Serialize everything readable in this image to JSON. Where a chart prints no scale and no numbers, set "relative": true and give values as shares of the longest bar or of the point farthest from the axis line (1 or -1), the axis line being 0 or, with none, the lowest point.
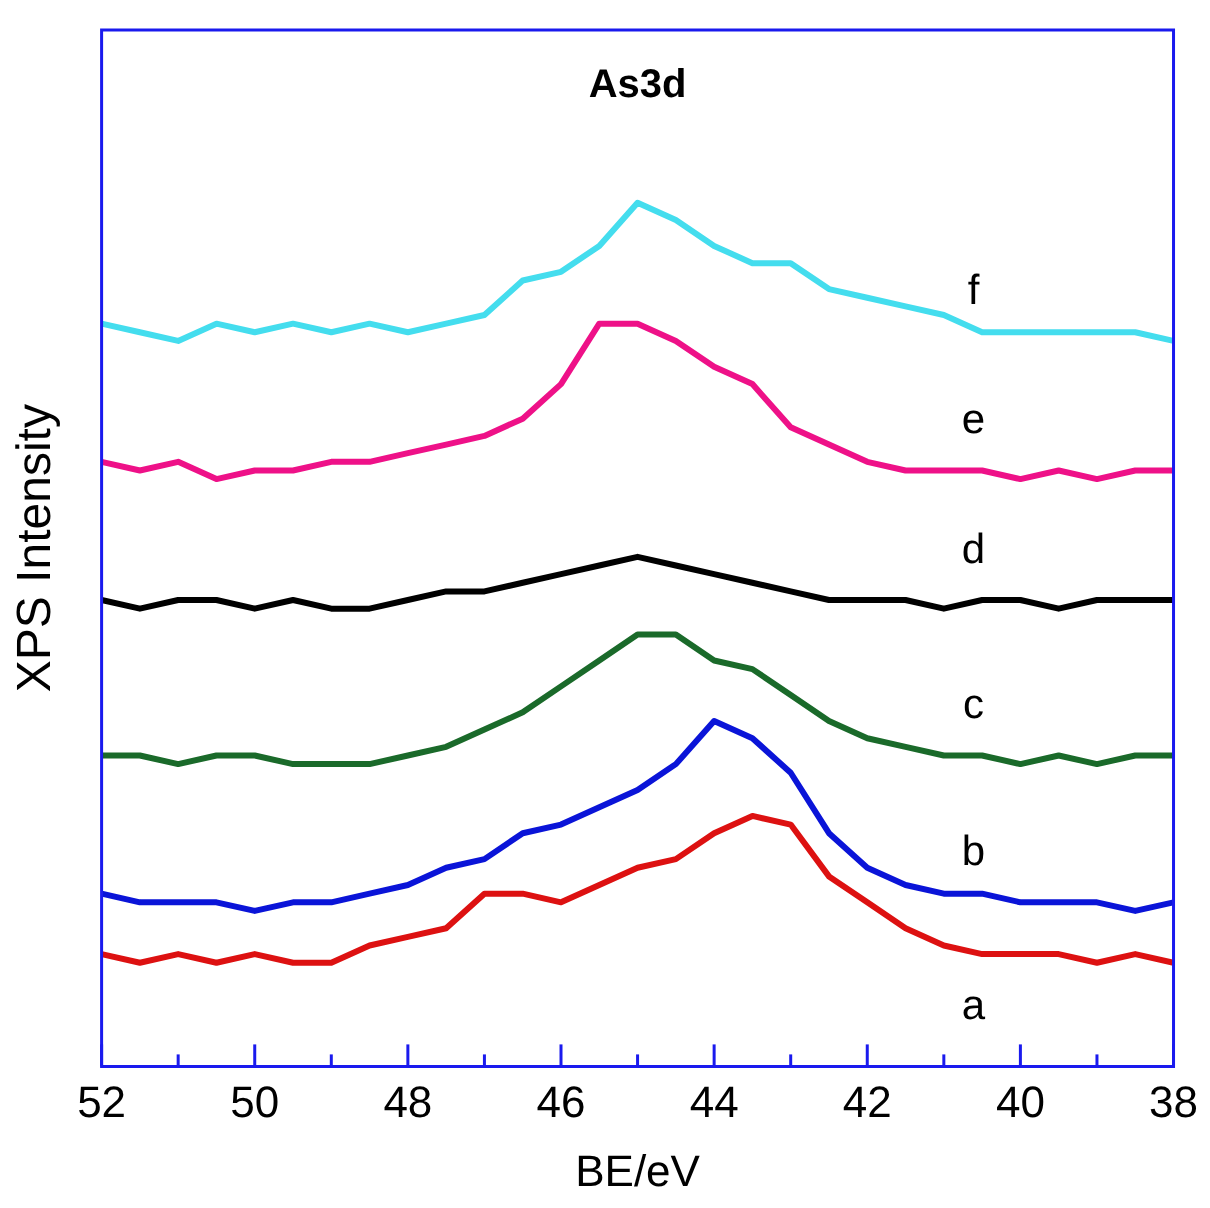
{
  "chart_data": {
    "type": "line",
    "title": "As3d",
    "xlabel": "BE/eV",
    "ylabel": "XPS Intensity",
    "relative": true,
    "x": [
      52,
      51.5,
      51,
      50.5,
      50,
      49.5,
      49,
      48.5,
      48,
      47.5,
      47,
      46.5,
      46,
      45.5,
      45,
      44.5,
      44,
      43.5,
      43,
      42.5,
      42,
      41.5,
      41,
      40.5,
      40,
      39.5,
      39,
      38.5,
      38
    ],
    "xlim": [
      52,
      38
    ],
    "xticks": [
      52,
      {
        "value": 51,
        "label": null
      },
      50,
      {
        "value": 49,
        "label": null
      },
      48,
      {
        "value": 47,
        "label": null
      },
      46,
      {
        "value": 45,
        "label": null
      },
      44,
      {
        "value": 43,
        "label": null
      },
      42,
      {
        "value": 41,
        "label": null
      },
      40,
      {
        "value": 39,
        "label": null
      },
      38
    ],
    "grid": false,
    "legend": false,
    "marker": "none",
    "line_style": "solid",
    "series": [
      {
        "name": "a",
        "color": "#dd1111",
        "values": [
          0.13,
          0.12,
          0.13,
          0.12,
          0.13,
          0.12,
          0.12,
          0.14,
          0.15,
          0.16,
          0.2,
          0.2,
          0.19,
          0.21,
          0.23,
          0.24,
          0.27,
          0.29,
          0.28,
          0.22,
          0.19,
          0.16,
          0.14,
          0.13,
          0.13,
          0.13,
          0.12,
          0.13,
          0.12
        ]
      },
      {
        "name": "b",
        "color": "#0a14d8",
        "values": [
          0.2,
          0.19,
          0.19,
          0.19,
          0.18,
          0.19,
          0.19,
          0.2,
          0.21,
          0.23,
          0.24,
          0.27,
          0.28,
          0.3,
          0.32,
          0.35,
          0.4,
          0.38,
          0.34,
          0.27,
          0.23,
          0.21,
          0.2,
          0.2,
          0.19,
          0.19,
          0.19,
          0.18,
          0.19
        ]
      },
      {
        "name": "c",
        "color": "#1a6a2a",
        "values": [
          0.36,
          0.36,
          0.35,
          0.36,
          0.36,
          0.35,
          0.35,
          0.35,
          0.36,
          0.37,
          0.39,
          0.41,
          0.44,
          0.47,
          0.5,
          0.5,
          0.47,
          0.46,
          0.43,
          0.4,
          0.38,
          0.37,
          0.36,
          0.36,
          0.35,
          0.36,
          0.35,
          0.36,
          0.36
        ]
      },
      {
        "name": "d",
        "color": "#000000",
        "values": [
          0.54,
          0.53,
          0.54,
          0.54,
          0.53,
          0.54,
          0.53,
          0.53,
          0.54,
          0.55,
          0.55,
          0.56,
          0.57,
          0.58,
          0.59,
          0.58,
          0.57,
          0.56,
          0.55,
          0.54,
          0.54,
          0.54,
          0.53,
          0.54,
          0.54,
          0.53,
          0.54,
          0.54,
          0.54
        ]
      },
      {
        "name": "e",
        "color": "#ee1188",
        "values": [
          0.7,
          0.69,
          0.7,
          0.68,
          0.69,
          0.69,
          0.7,
          0.7,
          0.71,
          0.72,
          0.73,
          0.75,
          0.79,
          0.86,
          0.86,
          0.84,
          0.81,
          0.79,
          0.74,
          0.72,
          0.7,
          0.69,
          0.69,
          0.69,
          0.68,
          0.69,
          0.68,
          0.69,
          0.69
        ]
      },
      {
        "name": "f",
        "color": "#44ddee",
        "values": [
          0.86,
          0.85,
          0.84,
          0.86,
          0.85,
          0.86,
          0.85,
          0.86,
          0.85,
          0.86,
          0.87,
          0.91,
          0.92,
          0.95,
          1.0,
          0.98,
          0.95,
          0.93,
          0.93,
          0.9,
          0.89,
          0.88,
          0.87,
          0.85,
          0.85,
          0.85,
          0.85,
          0.85,
          0.84
        ]
      }
    ]
  }
}
